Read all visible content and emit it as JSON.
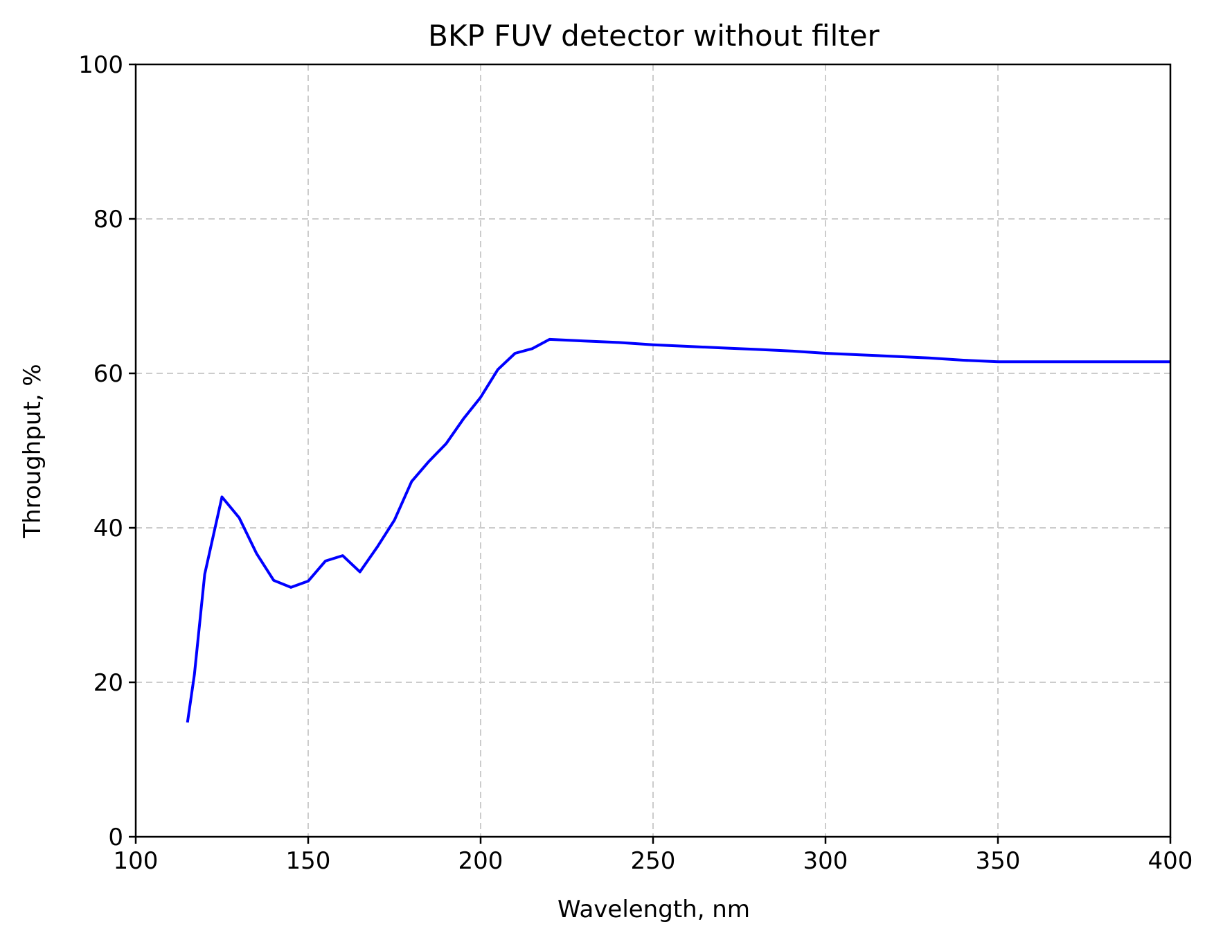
{
  "chart_data": {
    "type": "line",
    "title": "BKP FUV detector without filter",
    "xlabel": "Wavelength, nm",
    "ylabel": "Throughput, %",
    "xlim": [
      100,
      400
    ],
    "ylim": [
      0,
      100
    ],
    "xticks": [
      100,
      150,
      200,
      250,
      300,
      350,
      400
    ],
    "yticks": [
      0,
      20,
      40,
      60,
      80,
      100
    ],
    "grid": true,
    "legend": false,
    "series": [
      {
        "color": "#0000ff",
        "x": [
          115,
          117,
          120,
          125,
          130,
          135,
          140,
          145,
          150,
          155,
          160,
          165,
          170,
          175,
          180,
          185,
          190,
          195,
          200,
          205,
          210,
          215,
          220,
          230,
          240,
          250,
          260,
          270,
          280,
          290,
          300,
          310,
          320,
          330,
          340,
          350,
          360,
          370,
          380,
          390,
          400
        ],
        "y": [
          14.8,
          21.0,
          34.0,
          44.0,
          41.3,
          36.7,
          33.2,
          32.3,
          33.1,
          35.7,
          36.4,
          34.3,
          37.5,
          41.0,
          46.0,
          48.6,
          50.9,
          54.1,
          56.9,
          60.5,
          62.6,
          63.2,
          64.4,
          64.2,
          64.0,
          63.7,
          63.5,
          63.3,
          63.1,
          62.9,
          62.6,
          62.4,
          62.2,
          62.0,
          61.7,
          61.5,
          61.5,
          61.5,
          61.5,
          61.5,
          61.5
        ]
      }
    ]
  }
}
